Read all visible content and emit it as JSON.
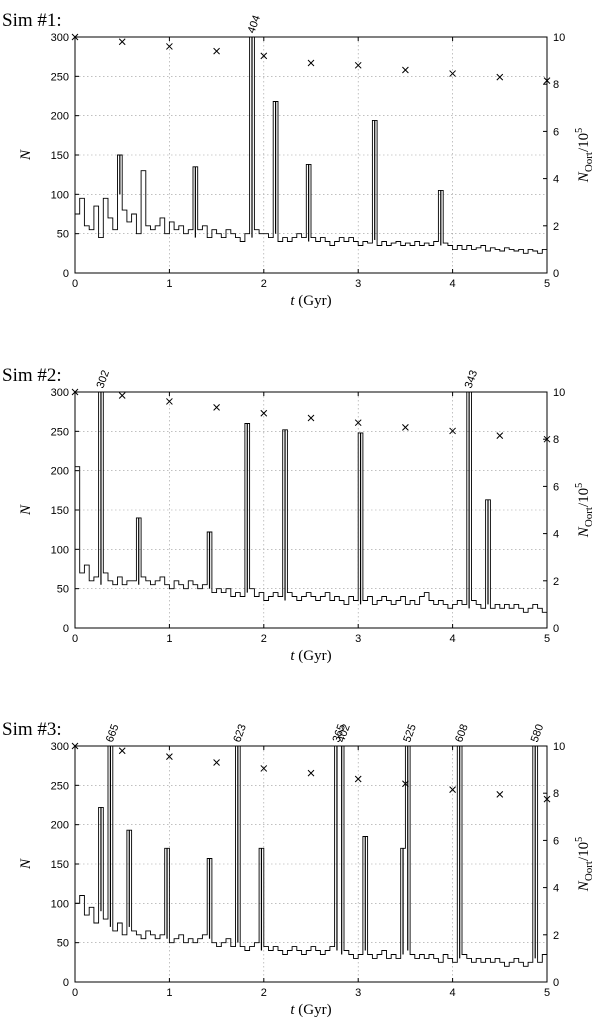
{
  "chart_data": [
    {
      "type": "line",
      "panel_title": "Sim #1:",
      "xlabel": "t (Gyr)",
      "ylabel": "N",
      "y2label": "N_Oort / 10^5",
      "xlim": [
        0,
        5
      ],
      "ylim": [
        0,
        300
      ],
      "y2lim": [
        0,
        10
      ],
      "xticks": [
        "0",
        "1",
        "2",
        "3",
        "4",
        "5"
      ],
      "yticks": [
        "0",
        "50",
        "100",
        "150",
        "200",
        "250",
        "300"
      ],
      "y2ticks": [
        "0",
        "2",
        "4",
        "6",
        "8",
        "10"
      ],
      "grid": true,
      "baseline": [
        75,
        95,
        60,
        55,
        85,
        45,
        95,
        70,
        55,
        100,
        80,
        65,
        75,
        50,
        130,
        60,
        55,
        60,
        70,
        50,
        65,
        55,
        60,
        50,
        55,
        45,
        55,
        60,
        45,
        55,
        50,
        45,
        55,
        50,
        45,
        40,
        50,
        45,
        55,
        50,
        50,
        45,
        50,
        40,
        45,
        40,
        45,
        50,
        45,
        40,
        45,
        40,
        45,
        40,
        35,
        40,
        45,
        40,
        45,
        40,
        35,
        40,
        38,
        42,
        35,
        40,
        35,
        38,
        40,
        35,
        38,
        35,
        40,
        35,
        38,
        35,
        40,
        35,
        38,
        35,
        30,
        35,
        30,
        35,
        30,
        32,
        35,
        28,
        32,
        30,
        28,
        32,
        30,
        28,
        30,
        25,
        30,
        28,
        25,
        30
      ],
      "peaks": [
        {
          "t": 0.45,
          "v": 150
        },
        {
          "t": 1.28,
          "v": 135
        },
        {
          "t": 1.87,
          "v": 404,
          "label": "404"
        },
        {
          "t": 2.15,
          "v": 218
        },
        {
          "t": 2.45,
          "v": 138
        },
        {
          "t": 3.18,
          "v": 194
        },
        {
          "t": 3.85,
          "v": 105
        }
      ],
      "oort": [
        {
          "t": 0,
          "v": 10
        },
        {
          "t": 0.5,
          "v": 9.8
        },
        {
          "t": 1.0,
          "v": 9.6
        },
        {
          "t": 1.5,
          "v": 9.4
        },
        {
          "t": 2.0,
          "v": 9.2
        },
        {
          "t": 2.5,
          "v": 8.9
        },
        {
          "t": 3.0,
          "v": 8.8
        },
        {
          "t": 3.5,
          "v": 8.6
        },
        {
          "t": 4.0,
          "v": 8.45
        },
        {
          "t": 4.5,
          "v": 8.3
        },
        {
          "t": 5.0,
          "v": 8.15
        }
      ]
    },
    {
      "type": "line",
      "panel_title": "Sim #2:",
      "xlabel": "t (Gyr)",
      "ylabel": "N",
      "y2label": "N_Oort / 10^5",
      "xlim": [
        0,
        5
      ],
      "ylim": [
        0,
        300
      ],
      "y2lim": [
        0,
        10
      ],
      "xticks": [
        "0",
        "1",
        "2",
        "3",
        "4",
        "5"
      ],
      "yticks": [
        "0",
        "50",
        "100",
        "150",
        "200",
        "250",
        "300"
      ],
      "y2ticks": [
        "0",
        "2",
        "4",
        "6",
        "8",
        "10"
      ],
      "grid": true,
      "baseline": [
        205,
        70,
        80,
        60,
        65,
        55,
        70,
        60,
        55,
        65,
        55,
        60,
        60,
        55,
        65,
        60,
        55,
        60,
        65,
        55,
        50,
        60,
        55,
        50,
        60,
        55,
        50,
        55,
        50,
        45,
        50,
        45,
        50,
        40,
        45,
        40,
        45,
        50,
        40,
        45,
        35,
        40,
        45,
        40,
        35,
        45,
        40,
        35,
        40,
        45,
        40,
        35,
        40,
        45,
        35,
        40,
        35,
        30,
        40,
        35,
        30,
        35,
        40,
        30,
        35,
        40,
        35,
        30,
        35,
        40,
        30,
        35,
        30,
        40,
        45,
        35,
        30,
        35,
        30,
        25,
        30,
        35,
        30,
        25,
        35,
        30,
        25,
        30,
        25,
        30,
        25,
        30,
        25,
        30,
        25,
        20,
        25,
        30,
        25,
        20
      ],
      "peaks": [
        {
          "t": 0.28,
          "v": 302,
          "label": "302"
        },
        {
          "t": 0.65,
          "v": 140
        },
        {
          "t": 1.43,
          "v": 122
        },
        {
          "t": 1.83,
          "v": 260
        },
        {
          "t": 2.22,
          "v": 252
        },
        {
          "t": 3.05,
          "v": 248
        },
        {
          "t": 4.15,
          "v": 343,
          "label": "343"
        },
        {
          "t": 4.38,
          "v": 163
        }
      ],
      "oort": [
        {
          "t": 0,
          "v": 10
        },
        {
          "t": 0.5,
          "v": 9.85
        },
        {
          "t": 1.0,
          "v": 9.6
        },
        {
          "t": 1.5,
          "v": 9.35
        },
        {
          "t": 2.0,
          "v": 9.1
        },
        {
          "t": 2.5,
          "v": 8.9
        },
        {
          "t": 3.0,
          "v": 8.7
        },
        {
          "t": 3.5,
          "v": 8.5
        },
        {
          "t": 4.0,
          "v": 8.35
        },
        {
          "t": 4.5,
          "v": 8.15
        },
        {
          "t": 5.0,
          "v": 8.0
        }
      ]
    },
    {
      "type": "line",
      "panel_title": "Sim #3:",
      "xlabel": "t (Gyr)",
      "ylabel": "N",
      "y2label": "N_Oort / 10^5",
      "xlim": [
        0,
        5
      ],
      "ylim": [
        0,
        300
      ],
      "y2lim": [
        0,
        10
      ],
      "xticks": [
        "0",
        "1",
        "2",
        "3",
        "4",
        "5"
      ],
      "yticks": [
        "0",
        "50",
        "100",
        "150",
        "200",
        "250",
        "300"
      ],
      "y2ticks": [
        "0",
        "2",
        "4",
        "6",
        "8",
        "10"
      ],
      "grid": true,
      "baseline": [
        100,
        110,
        85,
        95,
        75,
        90,
        80,
        70,
        65,
        75,
        60,
        70,
        65,
        60,
        55,
        65,
        60,
        55,
        60,
        55,
        50,
        55,
        60,
        50,
        55,
        50,
        55,
        60,
        55,
        50,
        45,
        50,
        55,
        45,
        50,
        45,
        40,
        45,
        50,
        40,
        45,
        40,
        45,
        40,
        35,
        40,
        45,
        40,
        35,
        40,
        45,
        40,
        35,
        40,
        45,
        40,
        35,
        40,
        35,
        30,
        35,
        40,
        35,
        30,
        35,
        40,
        30,
        35,
        30,
        35,
        40,
        35,
        30,
        35,
        30,
        35,
        30,
        25,
        35,
        30,
        25,
        30,
        35,
        30,
        25,
        30,
        25,
        30,
        25,
        30,
        25,
        20,
        25,
        30,
        25,
        20,
        25,
        30,
        25,
        35
      ],
      "peaks": [
        {
          "t": 0.28,
          "v": 222
        },
        {
          "t": 0.36,
          "v": 665,
          "label": "665"
        },
        {
          "t": 0.6,
          "v": 193
        },
        {
          "t": 0.97,
          "v": 170
        },
        {
          "t": 1.43,
          "v": 157
        },
        {
          "t": 1.7,
          "v": 623,
          "label": "623"
        },
        {
          "t": 1.98,
          "v": 170
        },
        {
          "t": 2.78,
          "v": 365,
          "label": "365"
        },
        {
          "t": 2.82,
          "v": 402,
          "label": "402"
        },
        {
          "t": 3.07,
          "v": 185
        },
        {
          "t": 3.47,
          "v": 170
        },
        {
          "t": 3.55,
          "v": 525,
          "label": "525"
        },
        {
          "t": 4.1,
          "v": 608,
          "label": "608"
        },
        {
          "t": 4.88,
          "v": 580,
          "label": "580"
        }
      ],
      "oort": [
        {
          "t": 0,
          "v": 10
        },
        {
          "t": 0.5,
          "v": 9.8
        },
        {
          "t": 1.0,
          "v": 9.55
        },
        {
          "t": 1.5,
          "v": 9.3
        },
        {
          "t": 2.0,
          "v": 9.05
        },
        {
          "t": 2.5,
          "v": 8.85
        },
        {
          "t": 3.0,
          "v": 8.6
        },
        {
          "t": 3.5,
          "v": 8.4
        },
        {
          "t": 4.0,
          "v": 8.15
        },
        {
          "t": 4.5,
          "v": 7.95
        },
        {
          "t": 5.0,
          "v": 7.75
        }
      ]
    }
  ]
}
